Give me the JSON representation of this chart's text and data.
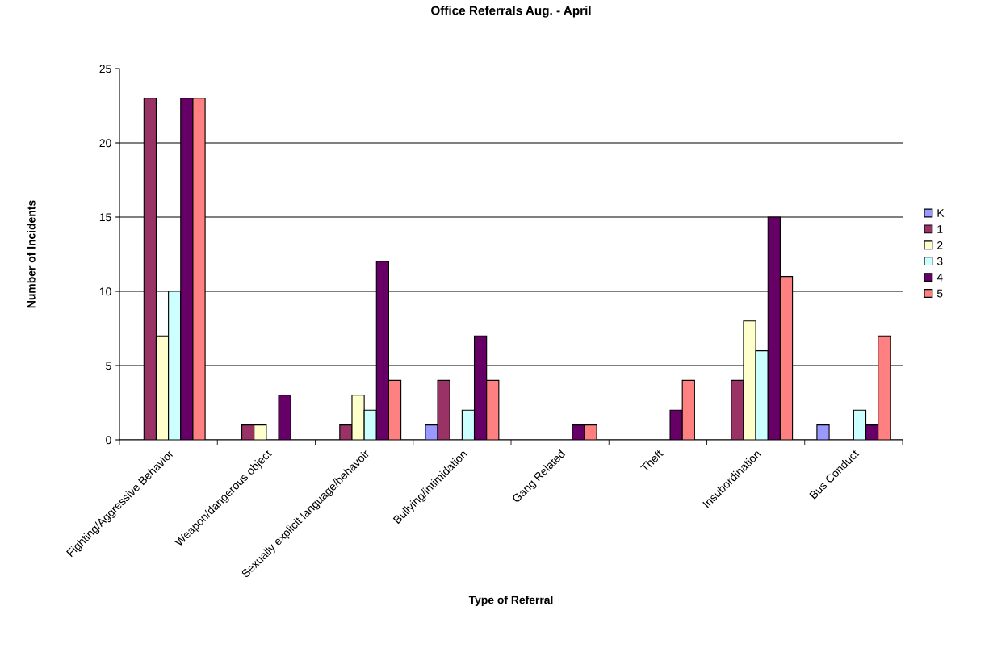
{
  "chart_data": {
    "type": "bar",
    "title": "Office Referrals Aug. - April",
    "xlabel": "Type of Referral",
    "ylabel": "Number of Incidents",
    "categories": [
      "Fighting/Aggressive Behavior",
      "Weapon/dangerous object",
      "Sexually explicit language/behavoir",
      "Bullying/intimidation",
      "Gang Related",
      "Theft",
      "Insubordination",
      "Bus Conduct"
    ],
    "series": [
      {
        "name": "K",
        "color": "#9999ff",
        "values": [
          0,
          0,
          0,
          1,
          0,
          0,
          0,
          1
        ]
      },
      {
        "name": "1",
        "color": "#993366",
        "values": [
          23,
          1,
          1,
          4,
          0,
          0,
          4,
          0
        ]
      },
      {
        "name": "2",
        "color": "#ffffcc",
        "values": [
          7,
          1,
          3,
          0,
          0,
          0,
          8,
          0
        ]
      },
      {
        "name": "3",
        "color": "#ccffff",
        "values": [
          10,
          0,
          2,
          2,
          0,
          0,
          6,
          2
        ]
      },
      {
        "name": "4",
        "color": "#660066",
        "values": [
          23,
          3,
          12,
          7,
          1,
          2,
          15,
          1
        ]
      },
      {
        "name": "5",
        "color": "#ff8080",
        "values": [
          23,
          0,
          4,
          4,
          1,
          4,
          11,
          7
        ]
      }
    ],
    "ylim": [
      0,
      25
    ],
    "yticks": [
      0,
      5,
      10,
      15,
      20,
      25
    ],
    "grid": "y",
    "legend": "right"
  }
}
